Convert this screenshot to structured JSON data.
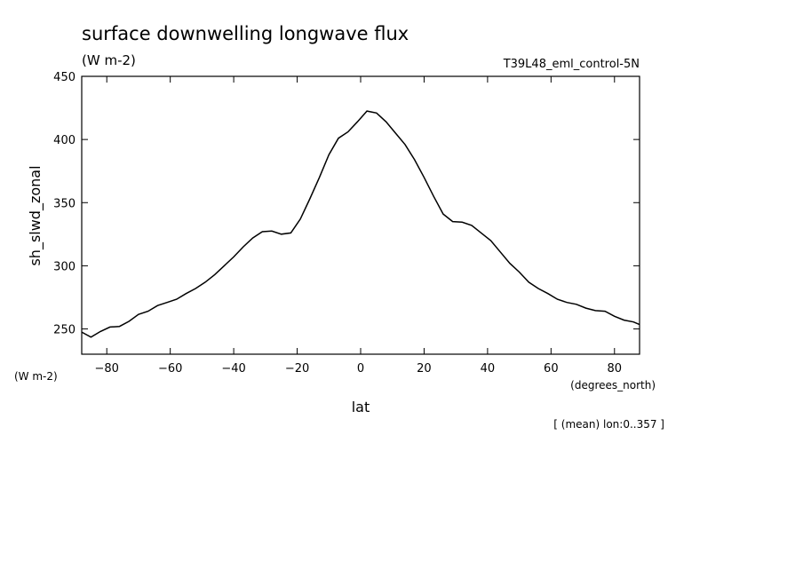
{
  "chart_data": {
    "type": "line",
    "title": "surface downwelling longwave flux",
    "units": "(W m-2)",
    "run_label": "T39L48_eml_control-5N",
    "ylabel": "sh_slwd_zonal",
    "y_units_label": "(W m-2)",
    "xlabel": "lat",
    "x_units_label": "(degrees_north)",
    "footnote": "[ (mean) lon:0..357 ]",
    "xlim": [
      -87.9,
      87.9
    ],
    "ylim": [
      230,
      450
    ],
    "x_ticks": [
      -80,
      -60,
      -40,
      -20,
      0,
      20,
      40,
      60,
      80
    ],
    "y_ticks": [
      250,
      300,
      350,
      400,
      450
    ],
    "grid": false,
    "series": [
      {
        "x": [
          -87.9,
          -85.0,
          -82.0,
          -79.0,
          -76.0,
          -73.0,
          -70.0,
          -67.0,
          -64.0,
          -61.0,
          -58.0,
          -55.0,
          -52.0,
          -49.0,
          -46.0,
          -43.0,
          -40.0,
          -37.0,
          -34.0,
          -31.0,
          -28.0,
          -25.0,
          -22.0,
          -19.0,
          -16.0,
          -13.0,
          -10.0,
          -7.0,
          -4.0,
          -1.0,
          2.0,
          5.0,
          8.0,
          11.0,
          14.0,
          17.0,
          20.0,
          23.0,
          26.0,
          29.0,
          32.0,
          35.0,
          38.0,
          41.0,
          44.0,
          47.0,
          50.0,
          53.0,
          56.0,
          59.0,
          62.0,
          65.0,
          68.0,
          71.0,
          74.0,
          77.0,
          80.0,
          83.0,
          86.0,
          87.9
        ],
        "y": [
          247.5,
          243.5,
          248.0,
          251.5,
          252.0,
          256.0,
          261.5,
          264.0,
          268.5,
          271.0,
          273.5,
          278.0,
          282.0,
          287.0,
          293.0,
          300.0,
          307.0,
          315.0,
          322.0,
          327.0,
          327.5,
          325.0,
          326.0,
          337.0,
          353.0,
          370.0,
          388.0,
          401.0,
          406.0,
          414.0,
          422.5,
          421.0,
          414.0,
          405.0,
          396.0,
          384.0,
          370.0,
          355.0,
          341.0,
          335.0,
          334.5,
          332.0,
          326.0,
          320.0,
          311.0,
          302.0,
          295.0,
          287.0,
          282.0,
          278.0,
          273.5,
          271.0,
          269.5,
          266.5,
          264.5,
          264.0,
          260.0,
          257.0,
          255.5,
          253.5
        ]
      }
    ]
  }
}
